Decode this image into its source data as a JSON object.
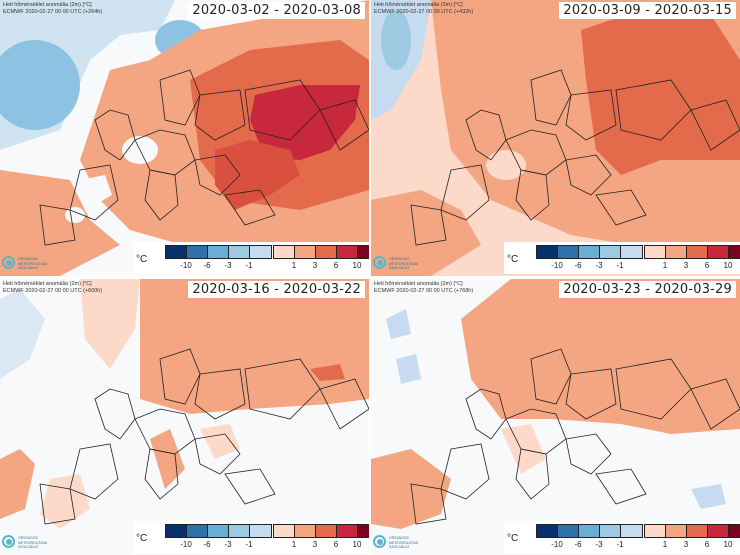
{
  "caption": {
    "line1": "Heti hőmérséklet anomália (2m) [°C]",
    "line2": "ECMWF 2020-02-27 00 00 UTC (+264h)"
  },
  "legend": {
    "unit": "°C",
    "neg_ticks": [
      "-10",
      "-6",
      "-3",
      "-1"
    ],
    "pos_ticks": [
      "1",
      "3",
      "6",
      "10"
    ],
    "neg_colors": [
      "#08306b",
      "#2f6faa",
      "#6aaed6",
      "#c6dbef"
    ],
    "pos_colors": [
      "#fcd9c8",
      "#f4a582",
      "#e36a4a",
      "#c7283b",
      "#7b0220"
    ]
  },
  "logo": {
    "line1": "ORSZÁGOS",
    "line2": "METEOROLÓGIAI",
    "line3": "SZOLGÁLAT"
  },
  "panels": [
    {
      "date_range": "2020-03-02 - 2020-03-08",
      "caption2": "ECMWF 2020-02-27 00 00 UTC (+264h)"
    },
    {
      "date_range": "2020-03-09 - 2020-03-15",
      "caption2": "ECMWF 2020-02-27 00 00 UTC (+432h)"
    },
    {
      "date_range": "2020-03-16 - 2020-03-22",
      "caption2": "ECMWF 2020-02-27 00 00 UTC (+600h)"
    },
    {
      "date_range": "2020-03-23 - 2020-03-29",
      "caption2": "ECMWF 2020-02-27 00 00 UTC (+768h)"
    }
  ],
  "colors": {
    "background_neutral": "#f3f5f8",
    "country_border": "#222222"
  }
}
